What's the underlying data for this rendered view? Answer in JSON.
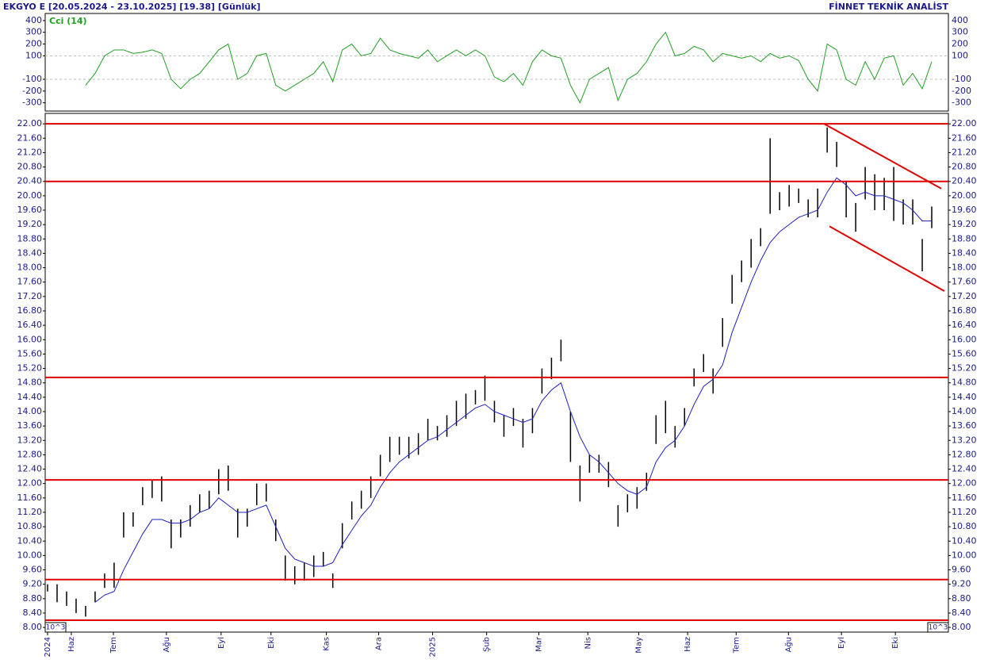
{
  "header": {
    "left": "EKGYO E  [20.05.2024 - 23.10.2025]  [19.38]  [Günlük]",
    "right": "FİNNET TEKNİK ANALİST"
  },
  "chart_data": [
    {
      "type": "line",
      "title": "Cci (14)",
      "color": "#22a022",
      "xlim": [
        0,
        380
      ],
      "ylim": [
        -370,
        460
      ],
      "yticks": [
        400,
        300,
        200,
        100,
        -100,
        -200,
        -300
      ],
      "grid_at": [
        100,
        -100
      ],
      "x": [
        1,
        5,
        9,
        13,
        17,
        21,
        25,
        29,
        33,
        37,
        41,
        45,
        49,
        53,
        57,
        61,
        65,
        69,
        73,
        77,
        81,
        85,
        89,
        93,
        97,
        101,
        105,
        109,
        113,
        117,
        121,
        125,
        129,
        133,
        137,
        141,
        145,
        149,
        153,
        157,
        161,
        165,
        169,
        173,
        177,
        181,
        185,
        189,
        193,
        197,
        201,
        205,
        209,
        213,
        217,
        221,
        225,
        229,
        233,
        237,
        241,
        245,
        249,
        253,
        257,
        261,
        265,
        269,
        273,
        277,
        281,
        285,
        289,
        293,
        297,
        301,
        305,
        309,
        313,
        317,
        321,
        325,
        329,
        333,
        337,
        341,
        345,
        349,
        353,
        357,
        361,
        365,
        369,
        373
      ],
      "values": [
        null,
        null,
        null,
        null,
        -150,
        -50,
        100,
        150,
        150,
        120,
        130,
        150,
        120,
        -100,
        -180,
        -100,
        -50,
        50,
        150,
        200,
        -100,
        -50,
        100,
        120,
        -150,
        -200,
        -150,
        -100,
        -50,
        50,
        -120,
        150,
        200,
        100,
        120,
        250,
        150,
        120,
        100,
        80,
        150,
        50,
        100,
        150,
        100,
        150,
        100,
        -80,
        -120,
        -50,
        -150,
        50,
        150,
        100,
        80,
        -150,
        -300,
        -100,
        -50,
        0,
        -280,
        -100,
        -50,
        50,
        200,
        300,
        100,
        120,
        180,
        150,
        50,
        120,
        100,
        80,
        100,
        50,
        120,
        80,
        100,
        60,
        -100,
        -200,
        200,
        150,
        -100,
        -150,
        50,
        -100,
        80,
        100,
        -150,
        -50,
        -180,
        50
      ]
    },
    {
      "type": "ohlc",
      "xlim": [
        0,
        380
      ],
      "ylim": [
        7.87,
        22.29
      ],
      "bar_color": "#000000",
      "ma_color": "#1f1fbf",
      "level_color": "#e00000",
      "yticks": [
        {
          "value": 8,
          "label": "8.00"
        },
        {
          "value": 8.4,
          "label": "8.40"
        },
        {
          "value": 8.8,
          "label": "8.80"
        },
        {
          "value": 9.2,
          "label": "9.20"
        },
        {
          "value": 9.6,
          "label": "9.60"
        },
        {
          "value": 10,
          "label": "10.00"
        },
        {
          "value": 10.4,
          "label": "10.40"
        },
        {
          "value": 10.8,
          "label": "10.80"
        },
        {
          "value": 11.2,
          "label": "11.20"
        },
        {
          "value": 11.6,
          "label": "11.60"
        },
        {
          "value": 12,
          "label": "12.00"
        },
        {
          "value": 12.4,
          "label": "12.40"
        },
        {
          "value": 12.8,
          "label": "12.80"
        },
        {
          "value": 13.2,
          "label": "13.20"
        },
        {
          "value": 13.6,
          "label": "13.60"
        },
        {
          "value": 14,
          "label": "14.00"
        },
        {
          "value": 14.4,
          "label": "14.40"
        },
        {
          "value": 14.8,
          "label": "14.80"
        },
        {
          "value": 15.2,
          "label": "15.20"
        },
        {
          "value": 15.6,
          "label": "15.60"
        },
        {
          "value": 16,
          "label": "16.00"
        },
        {
          "value": 16.4,
          "label": "16.40"
        },
        {
          "value": 16.8,
          "label": "16.80"
        },
        {
          "value": 17.2,
          "label": "17.20"
        },
        {
          "value": 17.6,
          "label": "17.60"
        },
        {
          "value": 18,
          "label": "18.00"
        },
        {
          "value": 18.4,
          "label": "18.40"
        },
        {
          "value": 18.8,
          "label": "18.80"
        },
        {
          "value": 19.2,
          "label": "19.20"
        },
        {
          "value": 19.6,
          "label": "19.60"
        },
        {
          "value": 20,
          "label": "20.00"
        },
        {
          "value": 20.4,
          "label": "20.40"
        },
        {
          "value": 20.8,
          "label": "20.80"
        },
        {
          "value": 21.2,
          "label": "21.20"
        },
        {
          "value": 21.6,
          "label": "21.60"
        },
        {
          "value": 22,
          "label": "22.00"
        }
      ],
      "xticks": [
        {
          "value": 1,
          "label": "2024"
        },
        {
          "value": 11,
          "label": "Haz"
        },
        {
          "value": 28.7,
          "label": "Tem"
        },
        {
          "value": 51,
          "label": "Ağu"
        },
        {
          "value": 74,
          "label": "Eyl"
        },
        {
          "value": 95,
          "label": "Eki"
        },
        {
          "value": 118.3,
          "label": "Kas"
        },
        {
          "value": 140.3,
          "label": "Ara"
        },
        {
          "value": 163,
          "label": "2025"
        },
        {
          "value": 185.7,
          "label": "Şub"
        },
        {
          "value": 207.7,
          "label": "Mar"
        },
        {
          "value": 228.3,
          "label": "Nis"
        },
        {
          "value": 249.7,
          "label": "May"
        },
        {
          "value": 270.3,
          "label": "Haz"
        },
        {
          "value": 290.7,
          "label": "Tem"
        },
        {
          "value": 312.7,
          "label": "Ağu"
        },
        {
          "value": 335,
          "label": "Eyl"
        },
        {
          "value": 357.7,
          "label": "Eki"
        }
      ],
      "unit_note": "10^3",
      "x": [
        1,
        5,
        9,
        13,
        17,
        21,
        25,
        29,
        33,
        37,
        41,
        45,
        49,
        53,
        57,
        61,
        65,
        69,
        73,
        77,
        81,
        85,
        89,
        93,
        97,
        101,
        105,
        109,
        113,
        117,
        121,
        125,
        129,
        133,
        137,
        141,
        145,
        149,
        153,
        157,
        161,
        165,
        169,
        173,
        177,
        181,
        185,
        189,
        193,
        197,
        201,
        205,
        209,
        213,
        217,
        221,
        225,
        229,
        233,
        237,
        241,
        245,
        249,
        253,
        257,
        261,
        265,
        269,
        273,
        277,
        281,
        285,
        289,
        293,
        297,
        301,
        305,
        309,
        313,
        317,
        321,
        325,
        329,
        333,
        337,
        341,
        345,
        349,
        353,
        357,
        361,
        365,
        369,
        373
      ],
      "high": [
        9.2,
        9.2,
        9.0,
        8.8,
        8.6,
        9.0,
        9.5,
        9.8,
        11.2,
        11.2,
        11.9,
        12.1,
        12.2,
        11.0,
        11.0,
        11.4,
        11.7,
        11.8,
        12.4,
        12.5,
        11.3,
        11.3,
        12.0,
        12.0,
        11.0,
        10.0,
        9.7,
        9.8,
        10.0,
        10.1,
        9.5,
        10.9,
        11.5,
        11.8,
        12.2,
        12.8,
        13.3,
        13.3,
        13.3,
        13.4,
        13.8,
        13.6,
        13.9,
        14.3,
        14.5,
        14.6,
        15.0,
        14.3,
        13.9,
        14.1,
        13.8,
        14.1,
        15.2,
        15.5,
        16.0,
        14.0,
        12.5,
        12.8,
        12.8,
        12.6,
        11.4,
        11.7,
        11.9,
        12.3,
        13.9,
        14.3,
        13.6,
        14.1,
        15.2,
        15.6,
        15.2,
        16.6,
        17.8,
        18.2,
        18.8,
        19.1,
        21.6,
        20.1,
        20.3,
        20.2,
        19.9,
        20.2,
        21.9,
        21.5,
        20.4,
        19.8,
        20.8,
        20.6,
        20.5,
        20.8,
        19.9,
        19.9,
        18.8,
        19.7
      ],
      "low": [
        9.0,
        8.7,
        8.6,
        8.4,
        8.3,
        8.7,
        9.1,
        9.1,
        10.5,
        10.8,
        11.4,
        11.6,
        11.5,
        10.2,
        10.5,
        10.8,
        11.2,
        11.3,
        11.7,
        11.8,
        10.5,
        10.8,
        11.4,
        11.5,
        10.4,
        9.3,
        9.2,
        9.3,
        9.4,
        9.7,
        9.1,
        10.2,
        11.0,
        11.3,
        11.6,
        12.2,
        12.6,
        12.8,
        12.7,
        12.8,
        13.2,
        13.2,
        13.3,
        13.6,
        13.8,
        14.2,
        14.3,
        13.7,
        13.3,
        13.6,
        13.0,
        13.4,
        14.5,
        14.9,
        15.4,
        12.6,
        11.5,
        12.3,
        12.3,
        11.9,
        10.8,
        11.2,
        11.3,
        11.8,
        13.1,
        13.4,
        13.0,
        13.6,
        14.7,
        15.1,
        14.5,
        15.8,
        17.0,
        17.6,
        18.0,
        18.6,
        19.5,
        19.6,
        19.7,
        19.8,
        19.4,
        19.4,
        21.2,
        20.8,
        19.4,
        19.0,
        19.9,
        19.6,
        19.6,
        19.3,
        19.2,
        19.2,
        17.9,
        19.1
      ],
      "ma": [
        null,
        null,
        null,
        null,
        null,
        8.7,
        8.9,
        9.0,
        9.6,
        10.1,
        10.6,
        11.0,
        11.0,
        10.9,
        10.9,
        11.0,
        11.2,
        11.3,
        11.6,
        11.4,
        11.2,
        11.2,
        11.3,
        11.4,
        10.8,
        10.2,
        9.9,
        9.8,
        9.7,
        9.7,
        9.8,
        10.3,
        10.7,
        11.1,
        11.4,
        11.9,
        12.3,
        12.6,
        12.8,
        13.0,
        13.2,
        13.3,
        13.5,
        13.7,
        13.9,
        14.1,
        14.2,
        14.0,
        13.9,
        13.8,
        13.7,
        13.8,
        14.3,
        14.6,
        14.8,
        14.0,
        13.3,
        12.8,
        12.6,
        12.3,
        12.0,
        11.8,
        11.7,
        11.9,
        12.6,
        13.0,
        13.2,
        13.6,
        14.2,
        14.7,
        14.9,
        15.3,
        16.2,
        16.9,
        17.6,
        18.2,
        18.7,
        19.0,
        19.2,
        19.4,
        19.5,
        19.6,
        20.1,
        20.5,
        20.3,
        20.0,
        20.1,
        20.0,
        20.0,
        19.9,
        19.8,
        19.6,
        19.3,
        19.3
      ],
      "levels": [
        22.0,
        20.4,
        14.95,
        12.1,
        9.33,
        8.2
      ],
      "trendlines": [
        {
          "x": [
            327.7,
            377
          ],
          "y": [
            22.0,
            20.2
          ]
        },
        {
          "x": [
            330,
            378.3
          ],
          "y": [
            19.15,
            17.35
          ]
        }
      ]
    }
  ]
}
